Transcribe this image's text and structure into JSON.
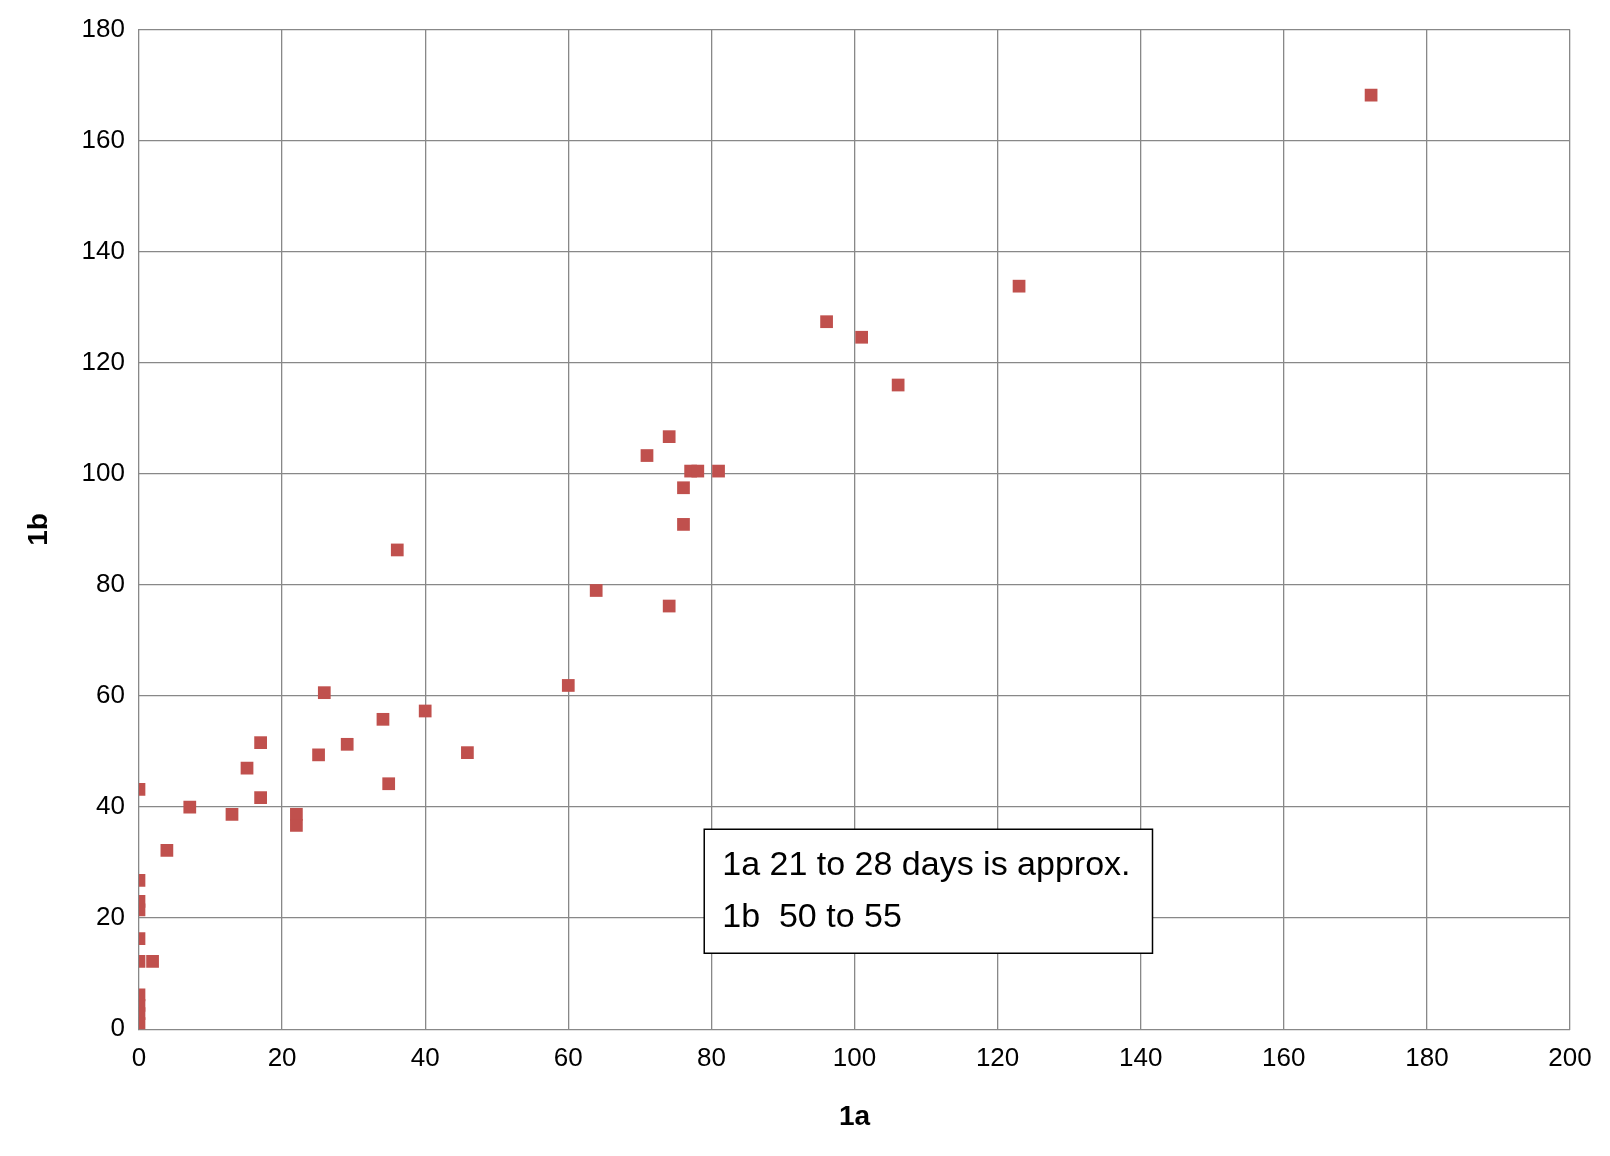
{
  "chart_data": {
    "type": "scatter",
    "xlabel": "1a",
    "ylabel": "1b",
    "marker": "square",
    "grid": true,
    "xlim": [
      0,
      200
    ],
    "xticks": [
      0,
      20,
      40,
      60,
      80,
      100,
      120,
      140,
      160,
      180,
      200
    ],
    "ylim": [
      0,
      180
    ],
    "yticks": [
      0,
      20,
      40,
      60,
      80,
      100,
      120,
      140,
      160,
      180
    ],
    "annotations": [
      "1a 21 to 28 days is approx.\n1b  50 to 55"
    ],
    "series": [
      {
        "color": "#c0504d",
        "x": [
          0,
          0,
          0,
          0,
          0,
          0,
          1.9,
          0,
          0,
          0,
          0,
          3.9,
          7.1,
          13,
          15.1,
          17,
          17,
          22,
          22,
          25.1,
          25.9,
          29.1,
          34.1,
          34.9,
          36.1,
          40,
          45.9,
          60,
          63.9,
          71,
          74.1,
          74.1,
          76.1,
          76.1,
          77.1,
          78.1,
          81,
          96.1,
          101,
          106.1,
          123,
          172.2
        ],
        "values": [
          43.2,
          26.8,
          23,
          21.5,
          16.3,
          12.2,
          12.2,
          6.2,
          4.3,
          2.8,
          1,
          32.2,
          40,
          38.7,
          47,
          51.6,
          41.7,
          38.7,
          36.7,
          49.4,
          60.6,
          51.3,
          55.8,
          44.2,
          86.3,
          57.3,
          49.8,
          61.9,
          79,
          103.3,
          106.7,
          76.2,
          97.5,
          90.9,
          100.5,
          100.5,
          100.5,
          127.4,
          124.6,
          116,
          133.8,
          168.2
        ]
      }
    ]
  }
}
